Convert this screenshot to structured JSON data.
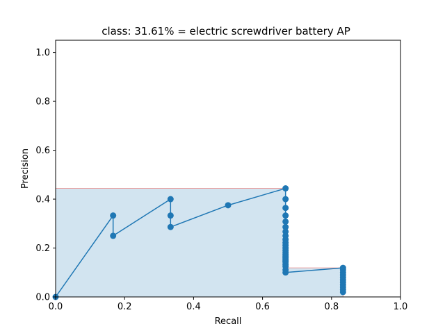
{
  "chart_data": {
    "type": "line",
    "title": "class: 31.61% = electric screwdriver battery AP",
    "xlabel": "Recall",
    "ylabel": "Precision",
    "xlim": [
      0.0,
      1.0
    ],
    "ylim": [
      0.0,
      1.05
    ],
    "xticks": [
      "0.0",
      "0.2",
      "0.4",
      "0.6",
      "0.8",
      "1.0"
    ],
    "yticks": [
      "0.0",
      "0.2",
      "0.4",
      "0.6",
      "0.8",
      "1.0"
    ],
    "grid": false,
    "series": [
      {
        "x": [
          0.0,
          0.1667,
          0.1667,
          0.3333,
          0.3333,
          0.3333,
          0.5,
          0.6667,
          0.6667,
          0.6667,
          0.6667,
          0.6667,
          0.6667,
          0.6667,
          0.6667,
          0.6667,
          0.6667,
          0.6667,
          0.6667,
          0.6667,
          0.6667,
          0.6667,
          0.6667,
          0.6667,
          0.6667,
          0.6667,
          0.6667,
          0.6667,
          0.6667,
          0.6667,
          0.6667,
          0.8333,
          0.8333,
          0.8333,
          0.8333,
          0.8333,
          0.8333,
          0.8333,
          0.8333,
          0.8333,
          0.8333,
          0.8333
        ],
        "y": [
          0.0,
          0.333,
          0.25,
          0.4,
          0.333,
          0.286,
          0.375,
          0.444,
          0.4,
          0.364,
          0.333,
          0.308,
          0.286,
          0.267,
          0.25,
          0.235,
          0.222,
          0.211,
          0.2,
          0.19,
          0.182,
          0.174,
          0.167,
          0.16,
          0.154,
          0.148,
          0.143,
          0.133,
          0.125,
          0.111,
          0.1,
          0.119,
          0.111,
          0.1,
          0.09,
          0.08,
          0.07,
          0.06,
          0.05,
          0.04,
          0.03,
          0.02
        ],
        "color": "#1f77b4"
      }
    ],
    "interpolated_precision": {
      "x": [
        0.0,
        0.6667,
        0.6667,
        0.8333,
        0.8333
      ],
      "y": [
        0.444,
        0.444,
        0.119,
        0.119,
        0.0
      ],
      "fill_color": "#1f77b4",
      "edge_color": "#e8a0a0"
    }
  }
}
